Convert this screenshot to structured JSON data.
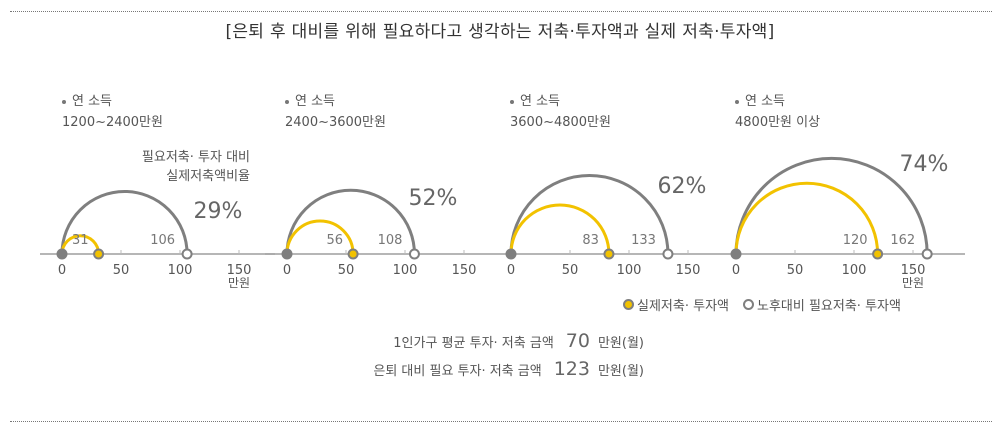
{
  "title": "[은퇴 후 대비를 위해 필요하다고 생각하는 저축·투자액과 실제 저축·투자액]",
  "ratio_caption": [
    "필요저축· 투자 대비",
    "실제저축액비율"
  ],
  "axis_unit": "만원",
  "legend": [
    {
      "label": "실제저축· 투자액",
      "color": "#F2C200",
      "style": "filled"
    },
    {
      "label": "노후대비 필요저축· 투자액",
      "color": "#7F7F7F",
      "style": "hollow"
    }
  ],
  "summary": [
    {
      "label": "1인가구 평균 투자· 저축 금액",
      "value": "70",
      "unit": "만원(월)"
    },
    {
      "label": "은퇴 대비 필요 투자· 저축 금액",
      "value": "123",
      "unit": "만원(월)"
    }
  ],
  "panels": [
    {
      "line1": "연 소득",
      "line2": "1200~2400만원",
      "actual": "31",
      "required": "106",
      "ratio": "29%"
    },
    {
      "line1": "연 소득",
      "line2": "2400~3600만원",
      "actual": "56",
      "required": "108",
      "ratio": "52%"
    },
    {
      "line1": "연 소득",
      "line2": "3600~4800만원",
      "actual": "83",
      "required": "133",
      "ratio": "62%"
    },
    {
      "line1": "연 소득",
      "line2": "4800만원 이상",
      "actual": "120",
      "required": "162",
      "ratio": "74%"
    }
  ],
  "chart_data": {
    "type": "semicircle-gauge",
    "title": "[은퇴 후 대비를 위해 필요하다고 생각하는 저축·투자액과 실제 저축·투자액]",
    "categories": [
      "1200~2400만원",
      "2400~3600만원",
      "3600~4800만원",
      "4800만원 이상"
    ],
    "series": [
      {
        "name": "실제저축· 투자액",
        "values": [
          31,
          56,
          83,
          120
        ],
        "color": "#F2C200"
      },
      {
        "name": "노후대비 필요저축· 투자액",
        "values": [
          106,
          108,
          133,
          162
        ],
        "color": "#7F7F7F"
      }
    ],
    "ratio_label": "필요저축· 투자 대비 실제저축액비율",
    "ratios_percent": [
      29,
      52,
      62,
      74
    ],
    "xlabel": "만원",
    "xticks": [
      0,
      50,
      100,
      150
    ],
    "xlim": [
      0,
      165
    ],
    "legend_position": "bottom-right",
    "annotations": [
      {
        "text": "1인가구 평균 투자· 저축 금액",
        "value": 70,
        "unit": "만원(월)"
      },
      {
        "text": "은퇴 대비 필요 투자· 저축 금액",
        "value": 123,
        "unit": "만원(월)"
      }
    ]
  }
}
